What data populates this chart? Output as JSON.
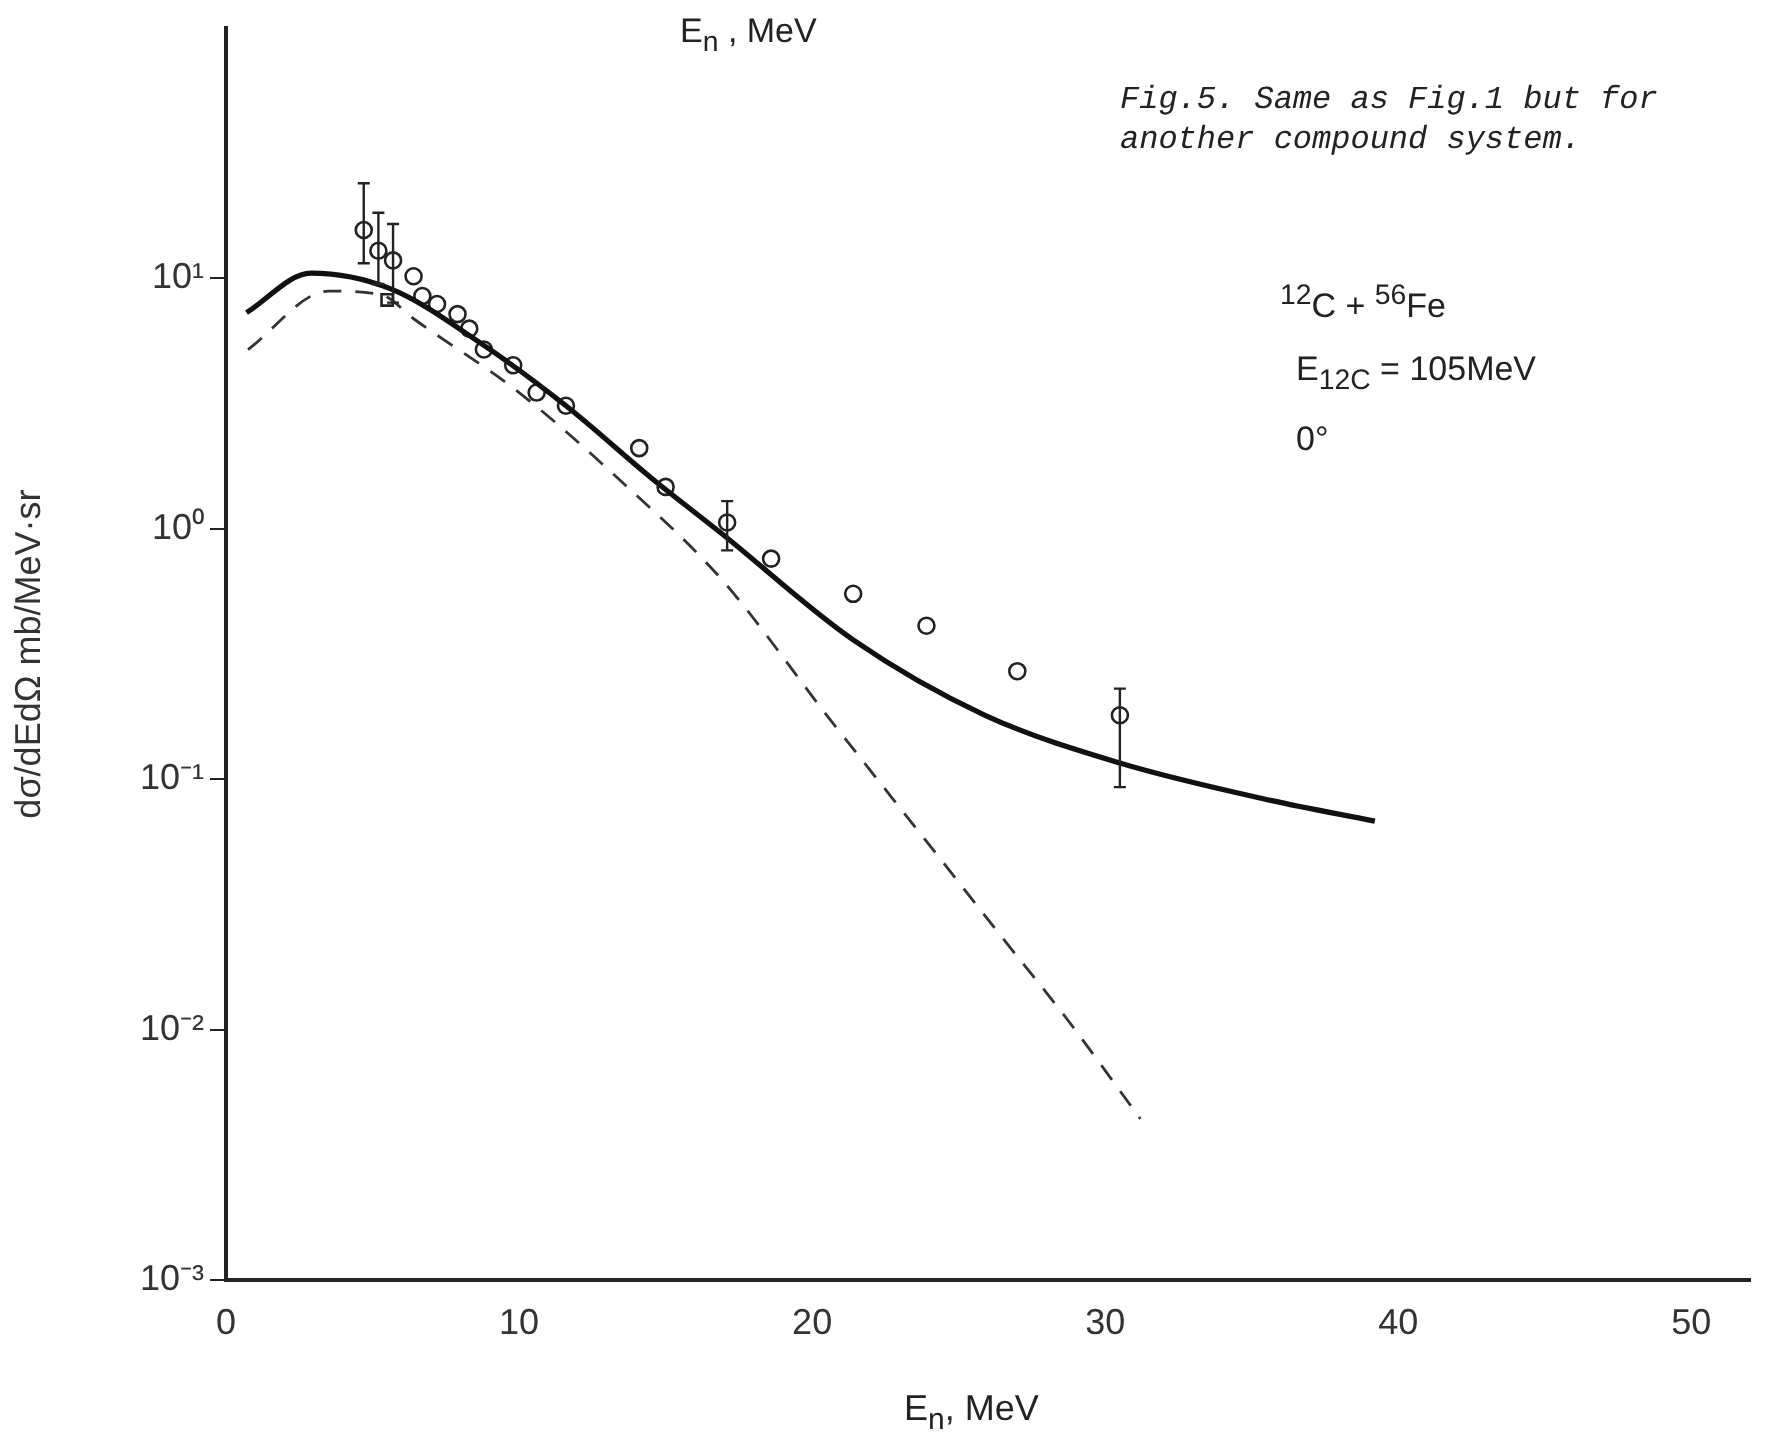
{
  "chart_data": {
    "type": "line",
    "xlabel": "E$_{n}$, MeV",
    "ylabel": "dσ/dEdΩ mb/MeV·sr",
    "log": "y",
    "xlim": [
      0,
      52
    ],
    "xticks": [
      0,
      10,
      20,
      30,
      40,
      50
    ],
    "ylim": [
      0.001,
      100
    ],
    "yticks": [
      {
        "value": 0.001,
        "label": "10⁻³"
      },
      {
        "value": 0.01,
        "label": "10⁻²"
      },
      {
        "value": 0.1,
        "label": "10⁻¹"
      },
      {
        "value": 1,
        "label": "10⁰"
      },
      {
        "value": 10,
        "label": "10¹"
      }
    ],
    "grid": false,
    "legend": false,
    "annotations": [
      "E$_{n}$ , MeV",
      "Fig.5. Same as Fig.1 but for another compound system.",
      "$^{12}$C + $^{56}$Fe",
      "E$_{12C}$ = 105MeV",
      "0°"
    ],
    "series": [
      {
        "line_style": "solid",
        "marker": "none",
        "color": "#111111",
        "x": [
          0.7,
          2.9,
          5.6,
          8.7,
          11.6,
          14.5,
          16.9,
          21.4,
          25.9,
          30.5,
          35.5,
          39.2
        ],
        "values": [
          7.3,
          10.5,
          9.1,
          5.5,
          3.1,
          1.6,
          0.96,
          0.36,
          0.18,
          0.116,
          0.083,
          0.068
        ]
      },
      {
        "line_style": "dashed",
        "marker": "none",
        "color": "#333333",
        "x": [
          0.75,
          3.5,
          5.3,
          6.4,
          10.0,
          13.4,
          16.9,
          20.5,
          24.2,
          26.4,
          28.7,
          31.2
        ],
        "values": [
          5.2,
          8.9,
          8.6,
          6.9,
          3.5,
          1.58,
          0.63,
          0.18,
          0.051,
          0.024,
          0.011,
          0.0044
        ]
      },
      {
        "type": "scatter",
        "marker": "circle",
        "color": "#222222",
        "x": [
          4.7,
          5.2,
          5.7,
          6.4,
          6.7,
          7.2,
          7.9,
          8.3,
          8.8,
          9.8,
          10.6,
          11.6,
          14.1,
          15.0,
          17.1,
          18.6,
          21.4,
          23.9,
          27.0,
          30.5
        ],
        "values": [
          15.6,
          12.9,
          11.8,
          10.2,
          8.5,
          7.9,
          7.2,
          6.3,
          5.2,
          4.5,
          3.5,
          3.1,
          2.1,
          1.47,
          1.06,
          0.76,
          0.55,
          0.41,
          0.27,
          0.18
        ],
        "errors": [
          [
            11.5,
            24
          ],
          [
            9.5,
            18.3
          ],
          [
            8.0,
            16.5
          ],
          null,
          null,
          null,
          null,
          null,
          null,
          null,
          null,
          null,
          null,
          null,
          [
            0.82,
            1.29
          ],
          null,
          null,
          null,
          null,
          [
            0.093,
            0.23
          ]
        ]
      },
      {
        "type": "scatter",
        "marker": "square",
        "color": "#222222",
        "x": [
          5.5
        ],
        "values": [
          8.2
        ]
      }
    ]
  }
}
